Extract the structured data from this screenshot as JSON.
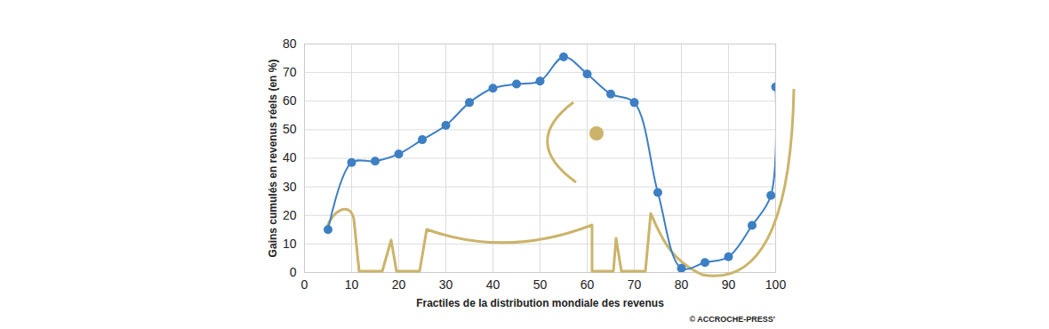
{
  "chart_data": {
    "type": "line",
    "x_label": "Fractiles de la distribution mondiale des revenus",
    "y_label": "Gains cumulés en revenus réels (en %)",
    "source": "© ACCROCHE-PRESS'",
    "x": [
      5,
      10,
      15,
      20,
      25,
      30,
      35,
      40,
      45,
      50,
      55,
      60,
      65,
      70,
      75,
      80,
      85,
      90,
      95,
      99,
      100
    ],
    "values": [
      15,
      38.5,
      39,
      41.5,
      46.5,
      51.5,
      59.5,
      64.5,
      66,
      67,
      75.5,
      69.5,
      62.5,
      59.5,
      28,
      1.5,
      3.5,
      5.5,
      16.5,
      27,
      65
    ],
    "color": "#3d7fc4",
    "marker": "circle",
    "xlim": [
      0,
      100
    ],
    "xticks": [
      0,
      10,
      20,
      30,
      40,
      50,
      60,
      70,
      80,
      90,
      100
    ],
    "ylim": [
      0,
      80
    ],
    "yticks": [
      0,
      10,
      20,
      30,
      40,
      50,
      60,
      70,
      80
    ],
    "grid": true
  }
}
